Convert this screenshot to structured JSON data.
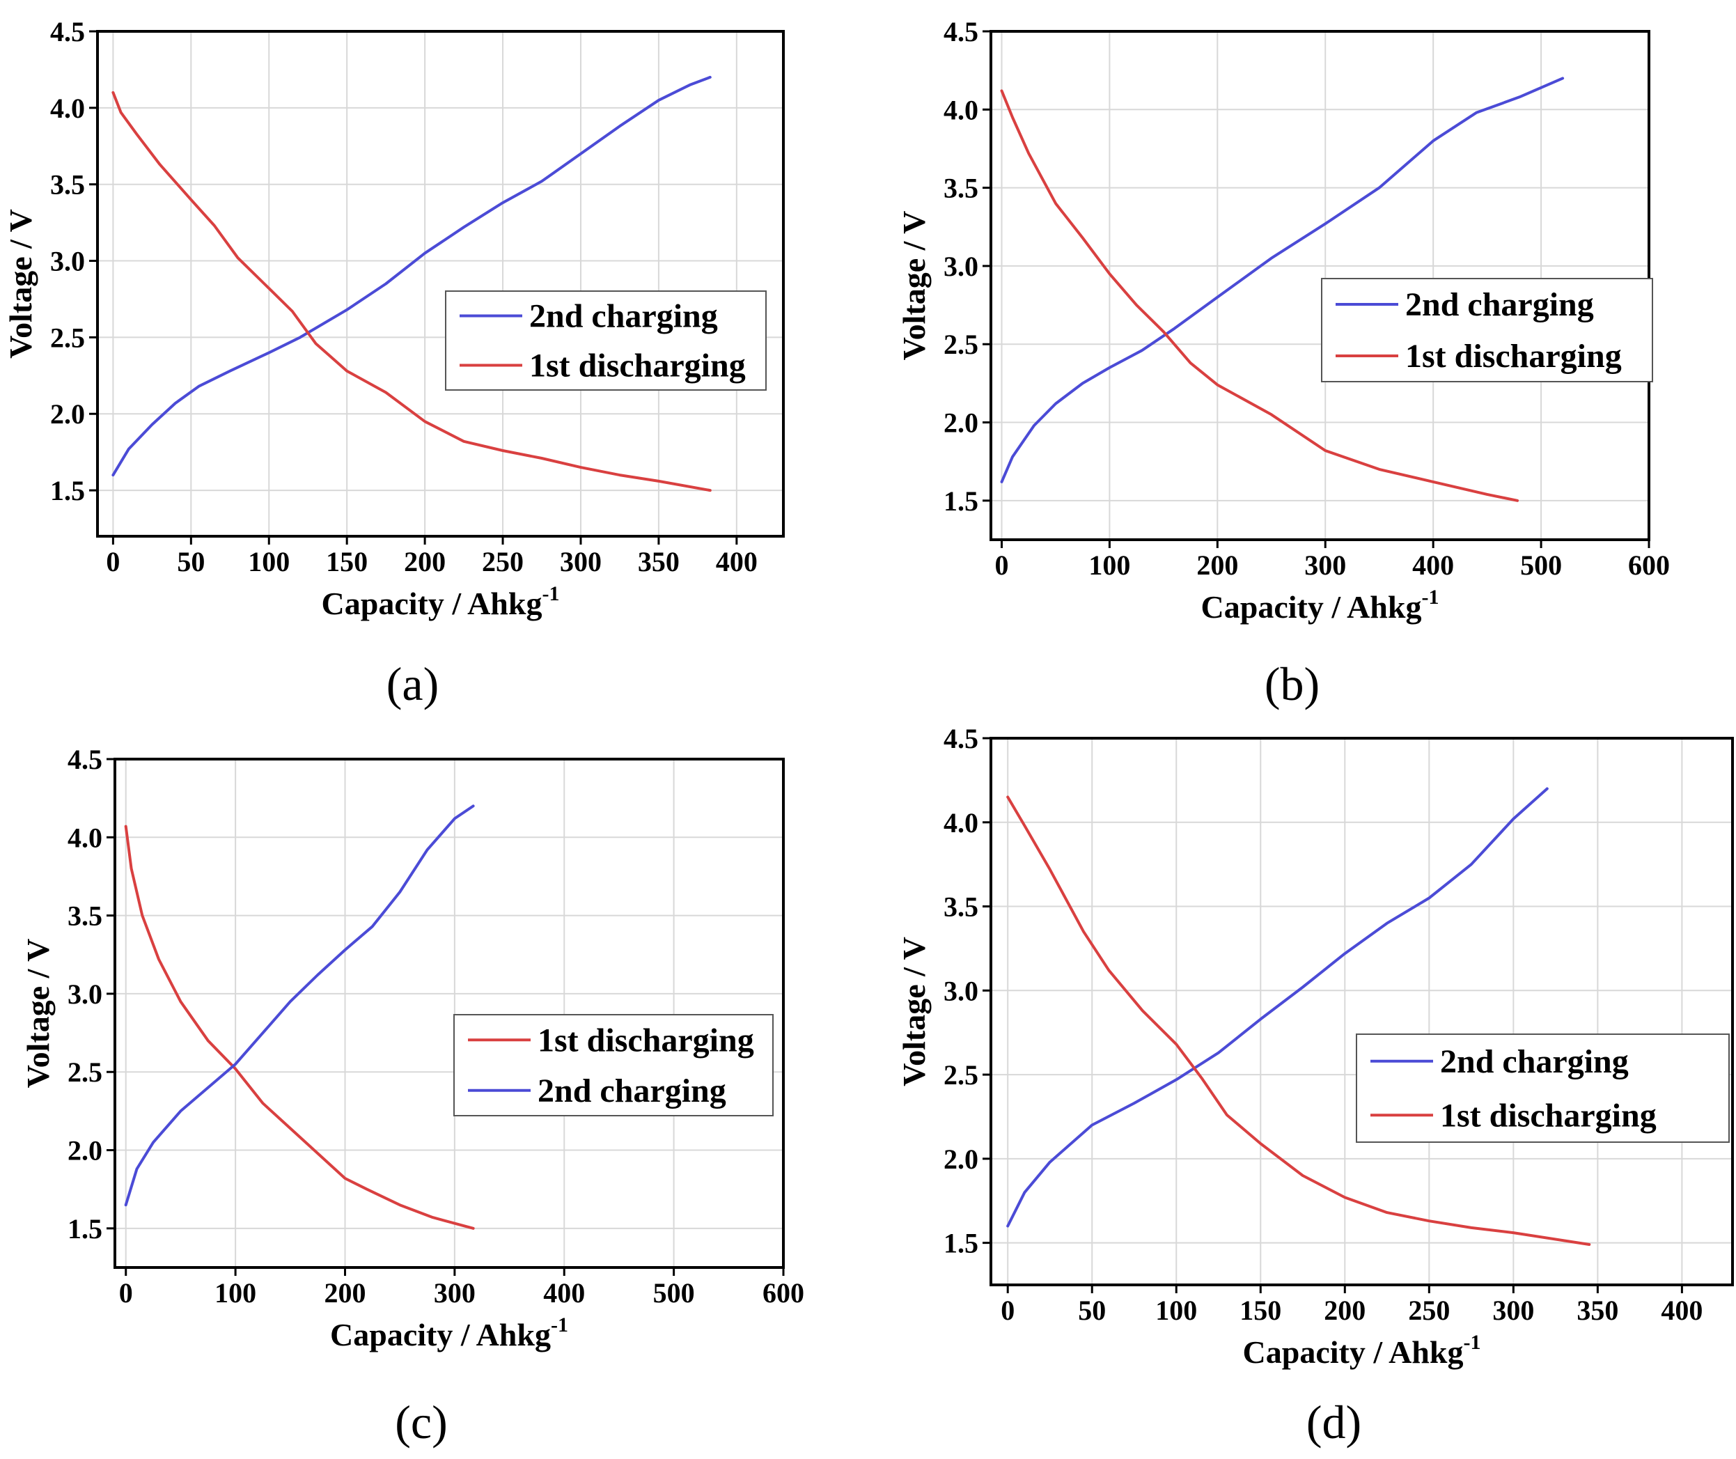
{
  "colors": {
    "charge": "#4b4bd6",
    "discharge": "#d94040",
    "grid": "#d8d8d8",
    "axis": "#000000"
  },
  "chart_data": [
    {
      "type": "line",
      "panel_label": "(a)",
      "xlabel": "Capacity / Ahkg",
      "xlabel_sup": "-1",
      "ylabel": "Voltage / V",
      "xlim": [
        -10,
        430
      ],
      "ylim": [
        1.2,
        4.5
      ],
      "xticks": [
        0,
        50,
        100,
        150,
        200,
        250,
        300,
        350,
        400
      ],
      "xtick_labels": [
        "0",
        "50",
        "100",
        "150",
        "200",
        "250",
        "300",
        "350",
        "400"
      ],
      "yticks": [
        1.5,
        2.0,
        2.5,
        3.0,
        3.5,
        4.0,
        4.5
      ],
      "ytick_labels": [
        "1.5",
        "2.0",
        "2.5",
        "3.0",
        "3.5",
        "4.0",
        "4.5"
      ],
      "legend_position": "center-right",
      "legend": [
        "2nd charging",
        "1st discharging"
      ],
      "series": [
        {
          "name": "2nd charging",
          "color": "charge",
          "x": [
            0,
            10,
            25,
            40,
            55,
            75,
            100,
            120,
            150,
            175,
            200,
            225,
            250,
            275,
            300,
            325,
            350,
            370,
            383
          ],
          "y": [
            1.6,
            1.77,
            1.93,
            2.07,
            2.18,
            2.28,
            2.4,
            2.5,
            2.68,
            2.85,
            3.05,
            3.22,
            3.38,
            3.52,
            3.7,
            3.88,
            4.05,
            4.15,
            4.2
          ]
        },
        {
          "name": "1st discharging",
          "color": "discharge",
          "x": [
            0,
            5,
            15,
            30,
            50,
            65,
            80,
            100,
            115,
            130,
            150,
            175,
            200,
            225,
            250,
            275,
            300,
            325,
            350,
            383
          ],
          "y": [
            4.1,
            3.97,
            3.83,
            3.63,
            3.4,
            3.23,
            3.02,
            2.82,
            2.67,
            2.46,
            2.28,
            2.14,
            1.95,
            1.82,
            1.76,
            1.71,
            1.65,
            1.6,
            1.56,
            1.5
          ]
        }
      ]
    },
    {
      "type": "line",
      "panel_label": "(b)",
      "xlabel": "Capacity / Ahkg",
      "xlabel_sup": "-1",
      "ylabel": "Voltage / V",
      "xlim": [
        -10,
        600
      ],
      "ylim": [
        1.25,
        4.5
      ],
      "xticks": [
        0,
        100,
        200,
        300,
        400,
        500,
        600
      ],
      "xtick_labels": [
        "0",
        "100",
        "200",
        "300",
        "400",
        "500",
        "600"
      ],
      "yticks": [
        1.5,
        2.0,
        2.5,
        3.0,
        3.5,
        4.0,
        4.5
      ],
      "ytick_labels": [
        "1.5",
        "2.0",
        "2.5",
        "3.0",
        "3.5",
        "4.0",
        "4.5"
      ],
      "legend_position": "center-right",
      "legend": [
        "2nd charging",
        "1st discharging"
      ],
      "series": [
        {
          "name": "2nd charging",
          "color": "charge",
          "x": [
            0,
            10,
            30,
            50,
            75,
            100,
            130,
            160,
            200,
            250,
            300,
            350,
            400,
            440,
            480,
            520
          ],
          "y": [
            1.62,
            1.78,
            1.98,
            2.12,
            2.25,
            2.35,
            2.46,
            2.6,
            2.8,
            3.05,
            3.27,
            3.5,
            3.8,
            3.98,
            4.08,
            4.2
          ]
        },
        {
          "name": "1st discharging",
          "color": "discharge",
          "x": [
            0,
            10,
            25,
            50,
            75,
            100,
            125,
            150,
            175,
            200,
            250,
            300,
            350,
            400,
            450,
            478
          ],
          "y": [
            4.12,
            3.95,
            3.72,
            3.4,
            3.18,
            2.95,
            2.75,
            2.58,
            2.38,
            2.24,
            2.05,
            1.82,
            1.7,
            1.62,
            1.54,
            1.5
          ]
        }
      ]
    },
    {
      "type": "line",
      "panel_label": "(c)",
      "xlabel": "Capacity / Ahkg",
      "xlabel_sup": "-1",
      "ylabel": "Voltage / V",
      "xlim": [
        -10,
        600
      ],
      "ylim": [
        1.25,
        4.5
      ],
      "xticks": [
        0,
        100,
        200,
        300,
        400,
        500,
        600
      ],
      "xtick_labels": [
        "0",
        "100",
        "200",
        "300",
        "400",
        "500",
        "600"
      ],
      "yticks": [
        1.5,
        2.0,
        2.5,
        3.0,
        3.5,
        4.0,
        4.5
      ],
      "ytick_labels": [
        "1.5",
        "2.0",
        "2.5",
        "3.0",
        "3.5",
        "4.0",
        "4.5"
      ],
      "legend_position": "center-right",
      "legend": [
        "1st discharging",
        "2nd charging"
      ],
      "series": [
        {
          "name": "1st discharging",
          "color": "discharge",
          "x": [
            0,
            5,
            15,
            30,
            50,
            75,
            100,
            125,
            150,
            175,
            200,
            220,
            250,
            280,
            317
          ],
          "y": [
            4.07,
            3.8,
            3.5,
            3.22,
            2.95,
            2.7,
            2.52,
            2.3,
            2.14,
            1.98,
            1.82,
            1.75,
            1.65,
            1.57,
            1.5
          ]
        },
        {
          "name": "2nd charging",
          "color": "charge",
          "x": [
            0,
            10,
            25,
            50,
            80,
            100,
            125,
            150,
            175,
            200,
            225,
            250,
            275,
            300,
            317
          ],
          "y": [
            1.65,
            1.88,
            2.05,
            2.25,
            2.43,
            2.55,
            2.75,
            2.95,
            3.12,
            3.28,
            3.43,
            3.65,
            3.92,
            4.12,
            4.2
          ]
        }
      ]
    },
    {
      "type": "line",
      "panel_label": "(d)",
      "xlabel": "Capacity / Ahkg",
      "xlabel_sup": "-1",
      "ylabel": "Voltage / V",
      "xlim": [
        -10,
        430
      ],
      "ylim": [
        1.25,
        4.5
      ],
      "xticks": [
        0,
        50,
        100,
        150,
        200,
        250,
        300,
        350,
        400
      ],
      "xtick_labels": [
        "0",
        "50",
        "100",
        "150",
        "200",
        "250",
        "300",
        "350",
        "400"
      ],
      "yticks": [
        1.5,
        2.0,
        2.5,
        3.0,
        3.5,
        4.0,
        4.5
      ],
      "ytick_labels": [
        "1.5",
        "2.0",
        "2.5",
        "3.0",
        "3.5",
        "4.0",
        "4.5"
      ],
      "legend_position": "center-right",
      "legend": [
        "2nd charging",
        "1st discharging"
      ],
      "series": [
        {
          "name": "2nd charging",
          "color": "charge",
          "x": [
            0,
            10,
            25,
            50,
            75,
            100,
            125,
            150,
            175,
            200,
            225,
            250,
            275,
            300,
            320
          ],
          "y": [
            1.6,
            1.8,
            1.98,
            2.2,
            2.33,
            2.47,
            2.63,
            2.83,
            3.02,
            3.22,
            3.4,
            3.55,
            3.75,
            4.02,
            4.2
          ]
        },
        {
          "name": "1st discharging",
          "color": "discharge",
          "x": [
            0,
            10,
            25,
            45,
            60,
            80,
            100,
            115,
            130,
            150,
            175,
            200,
            225,
            250,
            275,
            300,
            345
          ],
          "y": [
            4.15,
            3.98,
            3.72,
            3.35,
            3.12,
            2.88,
            2.68,
            2.48,
            2.26,
            2.09,
            1.9,
            1.77,
            1.68,
            1.63,
            1.59,
            1.56,
            1.49
          ]
        }
      ]
    }
  ]
}
